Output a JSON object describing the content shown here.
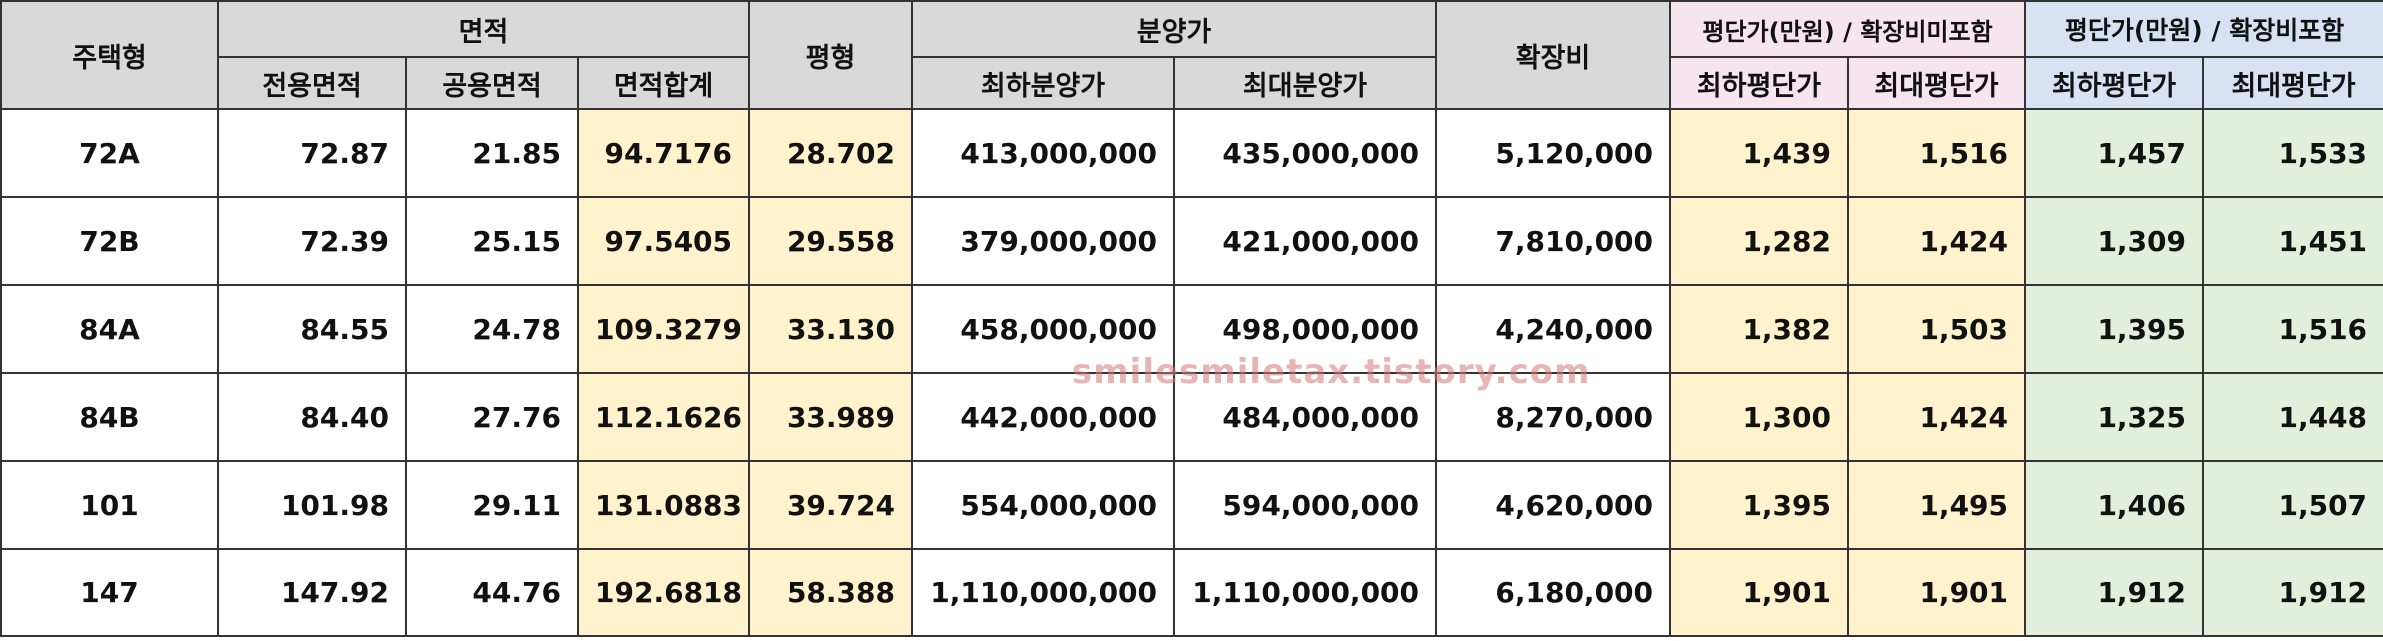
{
  "headers": {
    "type": "주택형",
    "area": "면적",
    "exclusive_area": "전용면적",
    "common_area": "공용면적",
    "total_area": "면적합계",
    "pyeong": "평형",
    "sale_price": "분양가",
    "min_sale_price": "최하분양가",
    "max_sale_price": "최대분양가",
    "expansion_cost": "확장비",
    "per_pyeong_excl": "평단가(만원) / 확장비미포함",
    "per_pyeong_incl": "평단가(만원) / 확장비포함",
    "min_per_pyeong": "최하평단가",
    "max_per_pyeong": "최대평단가"
  },
  "rows": [
    {
      "type": "72A",
      "exclusive": "72.87",
      "common": "21.85",
      "total": "94.7176",
      "pyeong": "28.702",
      "min_price": "413,000,000",
      "max_price": "435,000,000",
      "expansion": "5,120,000",
      "excl_min": "1,439",
      "excl_max": "1,516",
      "incl_min": "1,457",
      "incl_max": "1,533"
    },
    {
      "type": "72B",
      "exclusive": "72.39",
      "common": "25.15",
      "total": "97.5405",
      "pyeong": "29.558",
      "min_price": "379,000,000",
      "max_price": "421,000,000",
      "expansion": "7,810,000",
      "excl_min": "1,282",
      "excl_max": "1,424",
      "incl_min": "1,309",
      "incl_max": "1,451"
    },
    {
      "type": "84A",
      "exclusive": "84.55",
      "common": "24.78",
      "total": "109.3279",
      "pyeong": "33.130",
      "min_price": "458,000,000",
      "max_price": "498,000,000",
      "expansion": "4,240,000",
      "excl_min": "1,382",
      "excl_max": "1,503",
      "incl_min": "1,395",
      "incl_max": "1,516"
    },
    {
      "type": "84B",
      "exclusive": "84.40",
      "common": "27.76",
      "total": "112.1626",
      "pyeong": "33.989",
      "min_price": "442,000,000",
      "max_price": "484,000,000",
      "expansion": "8,270,000",
      "excl_min": "1,300",
      "excl_max": "1,424",
      "incl_min": "1,325",
      "incl_max": "1,448"
    },
    {
      "type": "101",
      "exclusive": "101.98",
      "common": "29.11",
      "total": "131.0883",
      "pyeong": "39.724",
      "min_price": "554,000,000",
      "max_price": "594,000,000",
      "expansion": "4,620,000",
      "excl_min": "1,395",
      "excl_max": "1,495",
      "incl_min": "1,406",
      "incl_max": "1,507"
    },
    {
      "type": "147",
      "exclusive": "147.92",
      "common": "44.76",
      "total": "192.6818",
      "pyeong": "58.388",
      "min_price": "1,110,000,000",
      "max_price": "1,110,000,000",
      "expansion": "6,180,000",
      "excl_min": "1,901",
      "excl_max": "1,901",
      "incl_min": "1,912",
      "incl_max": "1,912"
    }
  ],
  "watermark": "smilesmiletax.tistory.com",
  "colors": {
    "header_gray": "#d9d9d9",
    "header_pink": "#f6e4ee",
    "header_lavender": "#d9e2f3",
    "cell_cream": "#fff2cc",
    "cell_green": "#e2efda"
  }
}
